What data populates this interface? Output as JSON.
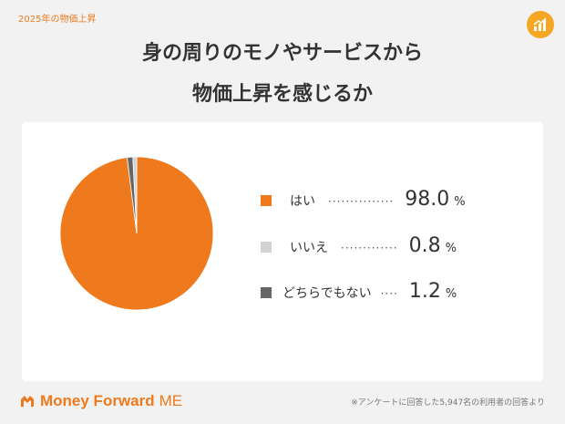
{
  "header": {
    "tag": "2025年の物価上昇",
    "title_line1": "身の周りのモノやサービスから",
    "title_line2": "物価上昇を感じるか",
    "logo_icon": "chart-up-icon"
  },
  "chart_data": {
    "type": "pie",
    "categories": [
      "はい",
      "いいえ",
      "どちらでもない"
    ],
    "values": [
      98.0,
      0.8,
      1.2
    ],
    "unit": "%",
    "colors": [
      "#ee7a1d",
      "#d3d3d3",
      "#666666"
    ],
    "legend_position": "right"
  },
  "legend": [
    {
      "label": "はい",
      "dots": "···············",
      "value": "98.0",
      "unit": "%"
    },
    {
      "label": "いいえ",
      "dots": "·············",
      "value": "0.8",
      "unit": "%"
    },
    {
      "label": "どちらでもない",
      "dots": "····",
      "value": "1.2",
      "unit": "%"
    }
  ],
  "footer": {
    "brand": "Money Forward",
    "brand_suffix": "ME",
    "note": "※アンケートに回答した5,947名の利用者の回答より"
  }
}
